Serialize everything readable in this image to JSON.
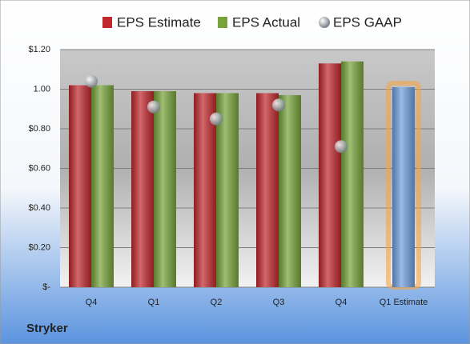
{
  "chart_data": {
    "type": "bar",
    "title": "Stryker",
    "categories": [
      "Q4",
      "Q1",
      "Q2",
      "Q3",
      "Q4",
      "Q1 Estimate"
    ],
    "series": [
      {
        "name": "EPS Estimate",
        "color": "#c0282d",
        "highlight_color": "#6f9fdc",
        "values": [
          1.02,
          0.99,
          0.98,
          0.98,
          1.13,
          1.01
        ]
      },
      {
        "name": "EPS Actual",
        "color": "#77a33a",
        "values": [
          1.02,
          0.99,
          0.98,
          0.97,
          1.14,
          null
        ]
      },
      {
        "name": "EPS GAAP",
        "color": "#9aa3ad",
        "values": [
          1.04,
          0.91,
          0.85,
          0.92,
          0.71,
          null
        ]
      }
    ],
    "ylim": [
      0,
      1.2
    ],
    "yticks": [
      {
        "value": 0,
        "label": "$-"
      },
      {
        "value": 0.2,
        "label": "$0.20"
      },
      {
        "value": 0.4,
        "label": "$0.40"
      },
      {
        "value": 0.6,
        "label": "$0.60"
      },
      {
        "value": 0.8,
        "label": "$0.80"
      },
      {
        "value": 1.0,
        "label": "1.00"
      },
      {
        "value": 1.2,
        "label": "$1.20"
      }
    ],
    "grid": true
  }
}
